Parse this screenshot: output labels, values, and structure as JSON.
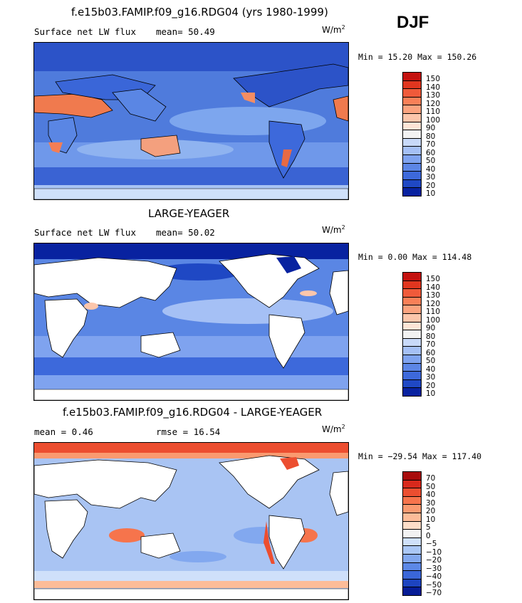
{
  "header": {
    "season": "DJF"
  },
  "panels": [
    {
      "title": "f.e15b03.FAMIP.f09_g16.RDG04 (yrs 1980-1999)",
      "left_text": "Surface net LW flux",
      "mid_text": "mean=  50.49",
      "units": "W/m",
      "units_exp": "2",
      "stats": "Min =  15.20 Max = 150.26",
      "colorbar_labels": [
        "150",
        "140",
        "130",
        "120",
        "110",
        "100",
        "90",
        "80",
        "70",
        "60",
        "50",
        "40",
        "30",
        "20",
        "10"
      ],
      "colorbar_colors": [
        "#c4120f",
        "#e0361f",
        "#ef5a3a",
        "#f88058",
        "#fba37f",
        "#fcc6ab",
        "#fde5d6",
        "#f2f2f2",
        "#c8d9f8",
        "#a5c0f5",
        "#7fa3ef",
        "#5c86e6",
        "#3d69db",
        "#1f48c4",
        "#0822a0"
      ]
    },
    {
      "title": "LARGE-YEAGER",
      "left_text": "Surface net LW flux",
      "mid_text": "mean=  50.02",
      "units": "W/m",
      "units_exp": "2",
      "stats": "Min =   0.00 Max = 114.48",
      "colorbar_labels": [
        "150",
        "140",
        "130",
        "120",
        "110",
        "100",
        "90",
        "80",
        "70",
        "60",
        "50",
        "40",
        "30",
        "20",
        "10"
      ],
      "colorbar_colors": [
        "#c4120f",
        "#e0361f",
        "#ef5a3a",
        "#f88058",
        "#fba37f",
        "#fcc6ab",
        "#fde5d6",
        "#f2f2f2",
        "#c8d9f8",
        "#a5c0f5",
        "#7fa3ef",
        "#5c86e6",
        "#3d69db",
        "#1f48c4",
        "#0822a0"
      ]
    },
    {
      "title": "f.e15b03.FAMIP.f09_g16.RDG04 - LARGE-YEAGER",
      "left_text": "mean =   0.46",
      "mid_text": "rmse =  16.54",
      "units": "W/m",
      "units_exp": "2",
      "stats": "Min = −29.54 Max = 117.40",
      "colorbar_labels": [
        "70",
        "50",
        "40",
        "30",
        "20",
        "10",
        "5",
        "0",
        "−5",
        "−10",
        "−20",
        "−30",
        "−40",
        "−50",
        "−70"
      ],
      "colorbar_colors": [
        "#a80c0c",
        "#d8291c",
        "#ec4e30",
        "#f6744c",
        "#fa9a70",
        "#fcbc98",
        "#fdddc8",
        "#f2f2f2",
        "#cfe0fa",
        "#aac7f5",
        "#82a8ef",
        "#5c88e6",
        "#3a66d8",
        "#1d44c0",
        "#061c96"
      ]
    }
  ],
  "map_colors": {
    "ocean_panel1": "#4f7bdc",
    "ocean_panel2": "#5a86e4",
    "ocean_panel3": "#a9c4f3",
    "land": "#ffffff",
    "coast": "#000000"
  }
}
